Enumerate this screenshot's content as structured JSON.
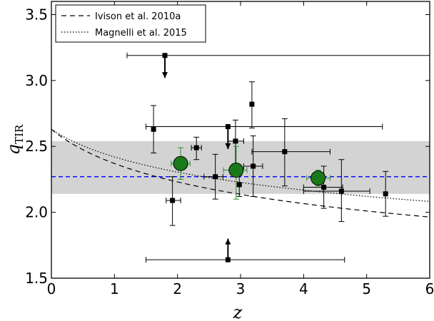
{
  "chart_data": {
    "type": "scatter",
    "xlabel": "z",
    "ylabel_main": "q",
    "ylabel_sub": "TIR",
    "xlim": [
      0,
      6
    ],
    "ylim": [
      1.5,
      3.6
    ],
    "x_ticks": [
      "0",
      "1",
      "2",
      "3",
      "4",
      "5",
      "6"
    ],
    "y_ticks": [
      "1.5",
      "2.0",
      "2.5",
      "3.0",
      "3.5"
    ],
    "band": {
      "y0": 2.14,
      "y1": 2.54,
      "color": "#d3d3d3"
    },
    "median_line": {
      "y": 2.27,
      "color": "#0000ff"
    },
    "ivison_curve": {
      "a": 2.63,
      "b": 0.15
    },
    "magnelli_curve": {
      "a": 2.63,
      "b": 0.12
    },
    "legend": [
      {
        "label": "Ivison et al. 2010a",
        "style": "dashed"
      },
      {
        "label": "Magnelli et al. 2015",
        "style": "dotted"
      }
    ],
    "points": [
      {
        "x": 1.62,
        "y": 2.63,
        "xl": 1.62,
        "xh": 1.62,
        "yl": 2.45,
        "yh": 2.81
      },
      {
        "x": 1.92,
        "y": 2.09,
        "xl": 1.82,
        "xh": 2.05,
        "yl": 1.9,
        "yh": 2.27
      },
      {
        "x": 2.3,
        "y": 2.49,
        "xl": 2.22,
        "xh": 2.38,
        "yl": 2.4,
        "yh": 2.57
      },
      {
        "x": 2.6,
        "y": 2.27,
        "xl": 2.42,
        "xh": 2.72,
        "yl": 2.1,
        "yh": 2.44
      },
      {
        "x": 2.92,
        "y": 2.54,
        "xl": 2.8,
        "xh": 3.05,
        "yl": 2.36,
        "yh": 2.7
      },
      {
        "x": 2.98,
        "y": 2.21,
        "xl": 2.98,
        "xh": 2.98,
        "yl": 2.12,
        "yh": 2.28
      },
      {
        "x": 3.18,
        "y": 2.82,
        "xl": 3.18,
        "xh": 3.18,
        "yl": 2.64,
        "yh": 2.99
      },
      {
        "x": 3.2,
        "y": 2.35,
        "xl": 3.05,
        "xh": 3.35,
        "yl": 2.12,
        "yh": 2.58
      },
      {
        "x": 3.7,
        "y": 2.46,
        "xl": 3.18,
        "xh": 4.42,
        "yl": 2.2,
        "yh": 2.71
      },
      {
        "x": 4.32,
        "y": 2.19,
        "xl": 4.0,
        "xh": 4.62,
        "yl": 2.03,
        "yh": 2.35
      },
      {
        "x": 4.6,
        "y": 2.16,
        "xl": 4.0,
        "xh": 5.05,
        "yl": 1.93,
        "yh": 2.4
      },
      {
        "x": 5.3,
        "y": 2.14,
        "xl": 5.3,
        "xh": 5.3,
        "yl": 1.97,
        "yh": 2.31
      }
    ],
    "wide_points": [
      {
        "x": 2.8,
        "y": 2.65,
        "xl": 1.5,
        "xh": 5.25
      }
    ],
    "upper_limits": [
      {
        "x": 1.8,
        "y": 3.19,
        "xl": 1.2,
        "xh": 6.0,
        "arrow_to": 3.02
      },
      {
        "x": 2.8,
        "y": 2.65,
        "xl": 2.8,
        "xh": 2.8,
        "arrow_to": 2.48
      }
    ],
    "lower_limits": [
      {
        "x": 2.8,
        "y": 1.64,
        "xl": 1.5,
        "xh": 4.65,
        "arrow_to": 1.8
      }
    ],
    "stacked": [
      {
        "x": 2.05,
        "y": 2.37,
        "xl": 1.9,
        "xh": 2.2,
        "yl": 2.25,
        "yh": 2.49
      },
      {
        "x": 2.93,
        "y": 2.32,
        "xl": 2.73,
        "xh": 3.1,
        "yl": 2.1,
        "yh": 2.5
      },
      {
        "x": 4.23,
        "y": 2.26,
        "xl": 4.05,
        "xh": 4.42,
        "yl": 2.2,
        "yh": 2.32
      }
    ],
    "stacked_color": "#1a7a1a",
    "stacked_err_color": "#2e8b2e"
  }
}
